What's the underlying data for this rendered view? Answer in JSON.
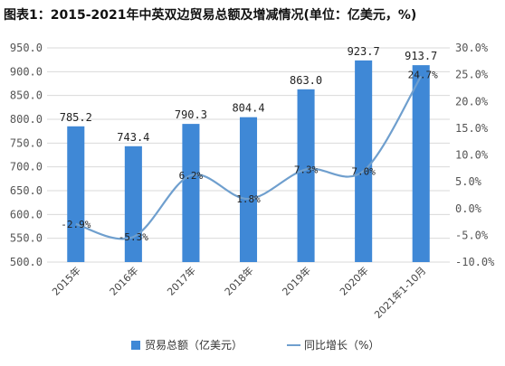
{
  "title": "图表1：2015-2021年中英双边贸易总额及增减情况(单位：亿美元，%)",
  "chart_data": {
    "type": "bar",
    "categories": [
      "2015年",
      "2016年",
      "2017年",
      "2018年",
      "2019年",
      "2020年",
      "2021年1-10月"
    ],
    "series": [
      {
        "name": "贸易总额（亿美元）",
        "type": "bar",
        "axis": "left",
        "values": [
          785.2,
          743.4,
          790.3,
          804.4,
          863.0,
          923.7,
          913.7
        ],
        "labels": [
          "785.2",
          "743.4",
          "790.3",
          "804.4",
          "863.0",
          "923.7",
          "913.7"
        ],
        "color": "#3f88d6"
      },
      {
        "name": "同比增长（%）",
        "type": "line",
        "axis": "right",
        "values": [
          -2.9,
          -5.3,
          6.2,
          1.8,
          7.3,
          7.0,
          24.7
        ],
        "labels": [
          "-2.9%",
          "-5.3%",
          "6.2%",
          "1.8%",
          "7.3%",
          "7.0%",
          "24.7%"
        ],
        "color": "#6f9fce"
      }
    ],
    "ylim_left": [
      500,
      950
    ],
    "yticks_left": [
      "500.0",
      "550.0",
      "600.0",
      "650.0",
      "700.0",
      "750.0",
      "800.0",
      "850.0",
      "900.0",
      "950.0"
    ],
    "ylim_right": [
      -10,
      30
    ],
    "yticks_right": [
      "-10.0%",
      "-5.0%",
      "0.0%",
      "5.0%",
      "10.0%",
      "15.0%",
      "20.0%",
      "25.0%",
      "30.0%"
    ],
    "grid": true,
    "legend_position": "bottom"
  }
}
